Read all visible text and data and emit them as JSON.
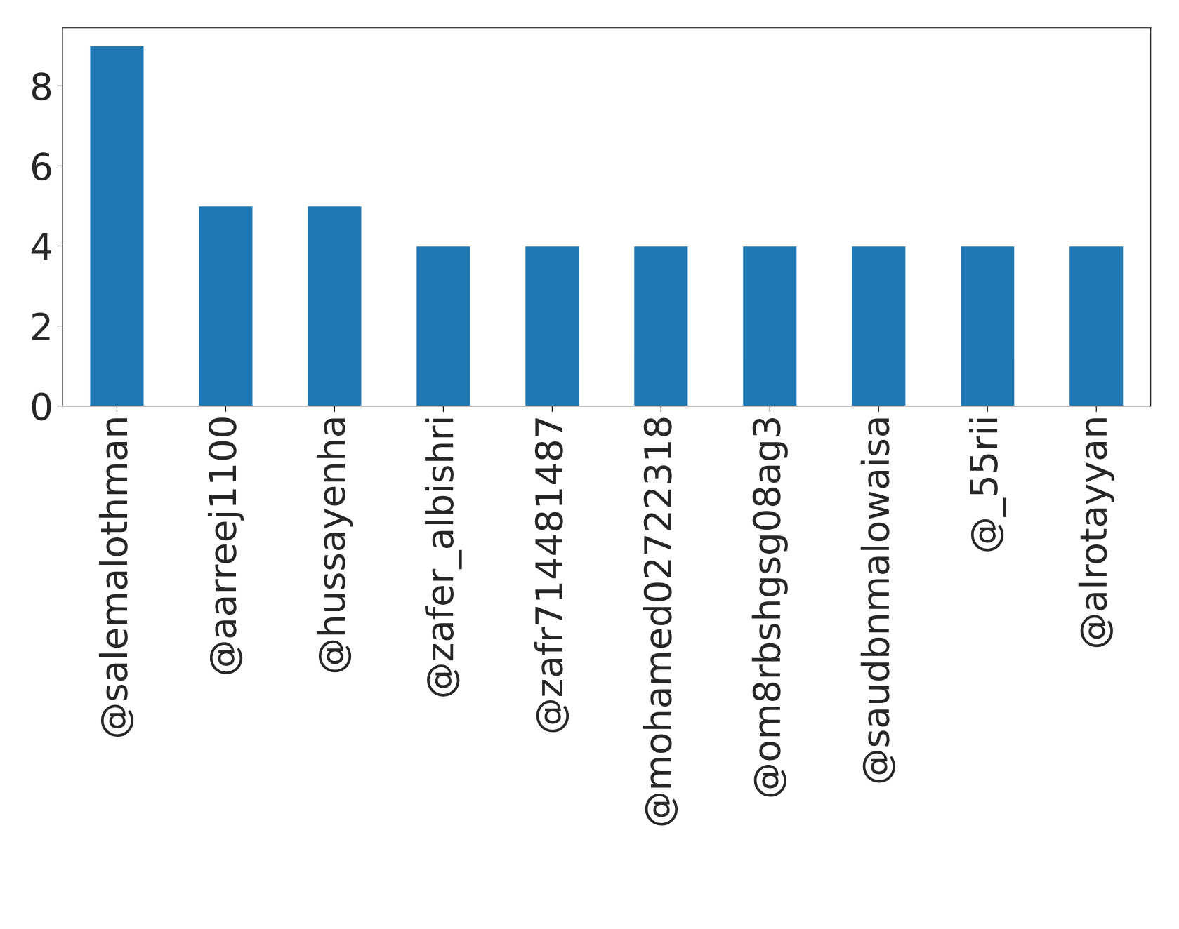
{
  "chart_data": {
    "type": "bar",
    "categories": [
      "@salemalothman",
      "@aarreej1100",
      "@hussayenha",
      "@zafer_albishri",
      "@zafr714481487",
      "@mohamed02722318",
      "@om8rbshgsg08ag3",
      "@saudbnmalowaisa",
      "@_55rii",
      "@alrotayyan"
    ],
    "values": [
      9,
      5,
      5,
      4,
      4,
      4,
      4,
      4,
      4,
      4
    ],
    "color": "#1f77b4",
    "ylim": [
      0,
      9.45
    ],
    "yticks": [
      0,
      2,
      4,
      6,
      8
    ],
    "grid": false
  }
}
